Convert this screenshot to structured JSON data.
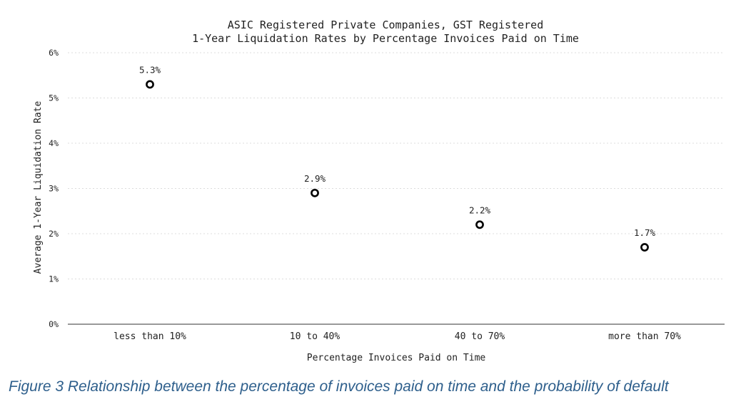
{
  "chart_data": {
    "type": "scatter",
    "title": [
      "ASIC Registered Private Companies, GST Registered",
      "1-Year Liquidation Rates by Percentage Invoices Paid on Time"
    ],
    "xlabel": "Percentage Invoices Paid on Time",
    "ylabel": "Average 1-Year Liquidation Rate",
    "categories": [
      "less than 10%",
      "10 to 40%",
      "40 to 70%",
      "more than 70%"
    ],
    "values": [
      5.3,
      2.9,
      2.2,
      1.7
    ],
    "data_labels": [
      "5.3%",
      "2.9%",
      "2.2%",
      "1.7%"
    ],
    "y_ticks": [
      "0%",
      "1%",
      "2%",
      "3%",
      "4%",
      "5%",
      "6%"
    ],
    "ylim": [
      0,
      6
    ],
    "grid": true,
    "marker": "open-circle",
    "legend": "none"
  },
  "caption": "Figure 3 Relationship between the percentage of invoices paid on time and the probability of default"
}
